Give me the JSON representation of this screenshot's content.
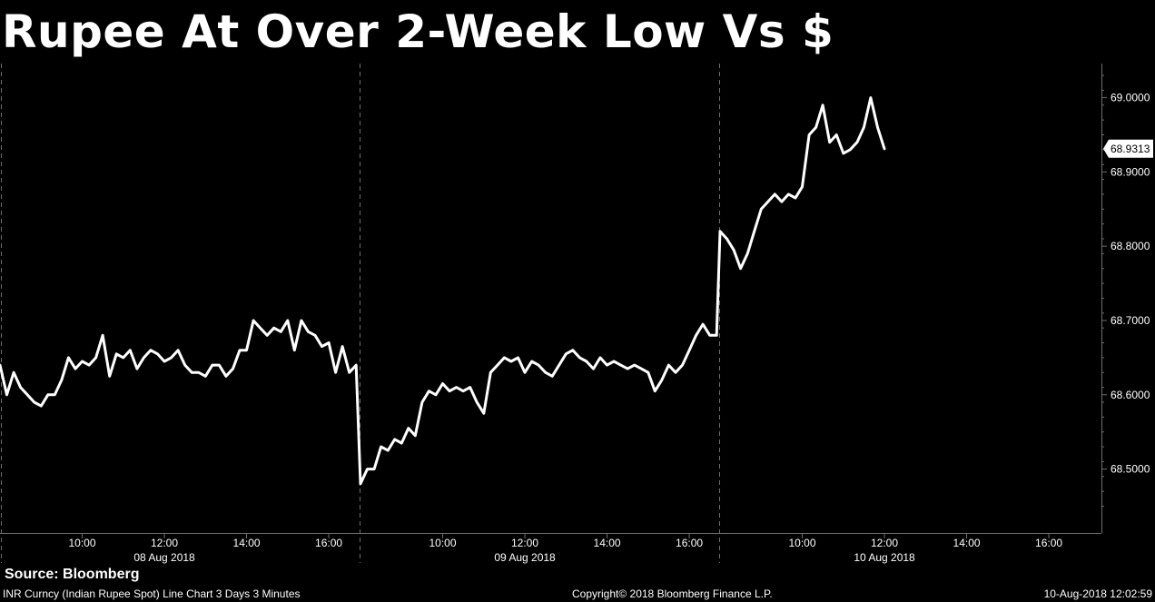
{
  "title": "Rupee At Over 2-Week Low Vs $",
  "source": "Source: Bloomberg",
  "footer": {
    "description": "INR Curncy (Indian Rupee Spot) Line Chart 3 Days 3 Minutes",
    "copyright": "Copyright© 2018 Bloomberg Finance L.P.",
    "timestamp": "10-Aug-2018 12:02:59"
  },
  "colors": {
    "background": "#000000",
    "line": "#ffffff",
    "grid": "#6e6e6e",
    "text": "#ffffff"
  },
  "chart_data": {
    "type": "line",
    "title": "Rupee At Over 2-Week Low Vs $",
    "xlabel": "",
    "ylabel": "",
    "ylim": [
      68.4,
      69.06
    ],
    "y_ticks": [
      68.5,
      68.6,
      68.7,
      68.8,
      68.9,
      69.0
    ],
    "y_tick_labels": [
      "68.5000",
      "68.6000",
      "68.7000",
      "68.8000",
      "68.9000",
      "69.0000"
    ],
    "last_value_label": "68.9313",
    "last_value": 68.9313,
    "grid": false,
    "sessions": [
      {
        "date": "08 Aug 2018",
        "start": "08:00",
        "end": "16:45",
        "tick_labels": [
          "10:00",
          "12:00",
          "14:00",
          "16:00"
        ]
      },
      {
        "date": "09 Aug 2018",
        "start": "08:00",
        "end": "16:45",
        "tick_labels": [
          "10:00",
          "12:00",
          "14:00",
          "16:00"
        ]
      },
      {
        "date": "10 Aug 2018",
        "start": "08:00",
        "end": "16:45",
        "tick_labels": [
          "10:00",
          "12:00",
          "14:00",
          "16:00"
        ]
      }
    ],
    "series": [
      {
        "points": [
          [
            "08 Aug 2018 08:00",
            68.64
          ],
          [
            "08 Aug 2018 08:10",
            68.6
          ],
          [
            "08 Aug 2018 08:20",
            68.63
          ],
          [
            "08 Aug 2018 08:30",
            68.61
          ],
          [
            "08 Aug 2018 08:40",
            68.6
          ],
          [
            "08 Aug 2018 08:50",
            68.59
          ],
          [
            "08 Aug 2018 09:00",
            68.585
          ],
          [
            "08 Aug 2018 09:10",
            68.6
          ],
          [
            "08 Aug 2018 09:20",
            68.6
          ],
          [
            "08 Aug 2018 09:30",
            68.62
          ],
          [
            "08 Aug 2018 09:40",
            68.65
          ],
          [
            "08 Aug 2018 09:50",
            68.635
          ],
          [
            "08 Aug 2018 10:00",
            68.645
          ],
          [
            "08 Aug 2018 10:10",
            68.64
          ],
          [
            "08 Aug 2018 10:20",
            68.65
          ],
          [
            "08 Aug 2018 10:30",
            68.68
          ],
          [
            "08 Aug 2018 10:40",
            68.625
          ],
          [
            "08 Aug 2018 10:50",
            68.655
          ],
          [
            "08 Aug 2018 11:00",
            68.65
          ],
          [
            "08 Aug 2018 11:10",
            68.66
          ],
          [
            "08 Aug 2018 11:20",
            68.635
          ],
          [
            "08 Aug 2018 11:30",
            68.65
          ],
          [
            "08 Aug 2018 11:40",
            68.66
          ],
          [
            "08 Aug 2018 11:50",
            68.655
          ],
          [
            "08 Aug 2018 12:00",
            68.645
          ],
          [
            "08 Aug 2018 12:10",
            68.65
          ],
          [
            "08 Aug 2018 12:20",
            68.66
          ],
          [
            "08 Aug 2018 12:30",
            68.64
          ],
          [
            "08 Aug 2018 12:40",
            68.63
          ],
          [
            "08 Aug 2018 12:50",
            68.63
          ],
          [
            "08 Aug 2018 13:00",
            68.625
          ],
          [
            "08 Aug 2018 13:10",
            68.64
          ],
          [
            "08 Aug 2018 13:20",
            68.64
          ],
          [
            "08 Aug 2018 13:30",
            68.625
          ],
          [
            "08 Aug 2018 13:40",
            68.635
          ],
          [
            "08 Aug 2018 13:50",
            68.66
          ],
          [
            "08 Aug 2018 14:00",
            68.66
          ],
          [
            "08 Aug 2018 14:10",
            68.7
          ],
          [
            "08 Aug 2018 14:20",
            68.69
          ],
          [
            "08 Aug 2018 14:30",
            68.68
          ],
          [
            "08 Aug 2018 14:40",
            68.69
          ],
          [
            "08 Aug 2018 14:50",
            68.685
          ],
          [
            "08 Aug 2018 15:00",
            68.7
          ],
          [
            "08 Aug 2018 15:10",
            68.66
          ],
          [
            "08 Aug 2018 15:20",
            68.7
          ],
          [
            "08 Aug 2018 15:30",
            68.685
          ],
          [
            "08 Aug 2018 15:40",
            68.68
          ],
          [
            "08 Aug 2018 15:50",
            68.665
          ],
          [
            "08 Aug 2018 16:00",
            68.67
          ],
          [
            "08 Aug 2018 16:10",
            68.63
          ],
          [
            "08 Aug 2018 16:20",
            68.665
          ],
          [
            "08 Aug 2018 16:30",
            68.63
          ],
          [
            "08 Aug 2018 16:40",
            68.64
          ],
          [
            "09 Aug 2018 08:00",
            68.48
          ],
          [
            "09 Aug 2018 08:10",
            68.5
          ],
          [
            "09 Aug 2018 08:20",
            68.5
          ],
          [
            "09 Aug 2018 08:30",
            68.53
          ],
          [
            "09 Aug 2018 08:40",
            68.525
          ],
          [
            "09 Aug 2018 08:50",
            68.54
          ],
          [
            "09 Aug 2018 09:00",
            68.535
          ],
          [
            "09 Aug 2018 09:10",
            68.555
          ],
          [
            "09 Aug 2018 09:20",
            68.545
          ],
          [
            "09 Aug 2018 09:30",
            68.59
          ],
          [
            "09 Aug 2018 09:40",
            68.605
          ],
          [
            "09 Aug 2018 09:50",
            68.6
          ],
          [
            "09 Aug 2018 10:00",
            68.615
          ],
          [
            "09 Aug 2018 10:10",
            68.605
          ],
          [
            "09 Aug 2018 10:20",
            68.61
          ],
          [
            "09 Aug 2018 10:30",
            68.605
          ],
          [
            "09 Aug 2018 10:40",
            68.61
          ],
          [
            "09 Aug 2018 10:50",
            68.59
          ],
          [
            "09 Aug 2018 11:00",
            68.575
          ],
          [
            "09 Aug 2018 11:10",
            68.63
          ],
          [
            "09 Aug 2018 11:20",
            68.64
          ],
          [
            "09 Aug 2018 11:30",
            68.65
          ],
          [
            "09 Aug 2018 11:40",
            68.645
          ],
          [
            "09 Aug 2018 11:50",
            68.65
          ],
          [
            "09 Aug 2018 12:00",
            68.63
          ],
          [
            "09 Aug 2018 12:10",
            68.645
          ],
          [
            "09 Aug 2018 12:20",
            68.64
          ],
          [
            "09 Aug 2018 12:30",
            68.63
          ],
          [
            "09 Aug 2018 12:40",
            68.625
          ],
          [
            "09 Aug 2018 12:50",
            68.64
          ],
          [
            "09 Aug 2018 13:00",
            68.655
          ],
          [
            "09 Aug 2018 13:10",
            68.66
          ],
          [
            "09 Aug 2018 13:20",
            68.65
          ],
          [
            "09 Aug 2018 13:30",
            68.645
          ],
          [
            "09 Aug 2018 13:40",
            68.635
          ],
          [
            "09 Aug 2018 13:50",
            68.65
          ],
          [
            "09 Aug 2018 14:00",
            68.64
          ],
          [
            "09 Aug 2018 14:10",
            68.645
          ],
          [
            "09 Aug 2018 14:20",
            68.64
          ],
          [
            "09 Aug 2018 14:30",
            68.635
          ],
          [
            "09 Aug 2018 14:40",
            68.64
          ],
          [
            "09 Aug 2018 14:50",
            68.635
          ],
          [
            "09 Aug 2018 15:00",
            68.63
          ],
          [
            "09 Aug 2018 15:10",
            68.605
          ],
          [
            "09 Aug 2018 15:20",
            68.62
          ],
          [
            "09 Aug 2018 15:30",
            68.64
          ],
          [
            "09 Aug 2018 15:40",
            68.63
          ],
          [
            "09 Aug 2018 15:50",
            68.64
          ],
          [
            "09 Aug 2018 16:00",
            68.66
          ],
          [
            "09 Aug 2018 16:10",
            68.68
          ],
          [
            "09 Aug 2018 16:20",
            68.695
          ],
          [
            "09 Aug 2018 16:30",
            68.68
          ],
          [
            "09 Aug 2018 16:40",
            68.68
          ],
          [
            "10 Aug 2018 08:00",
            68.82
          ],
          [
            "10 Aug 2018 08:10",
            68.81
          ],
          [
            "10 Aug 2018 08:20",
            68.795
          ],
          [
            "10 Aug 2018 08:30",
            68.77
          ],
          [
            "10 Aug 2018 08:40",
            68.79
          ],
          [
            "10 Aug 2018 08:50",
            68.82
          ],
          [
            "10 Aug 2018 09:00",
            68.85
          ],
          [
            "10 Aug 2018 09:10",
            68.86
          ],
          [
            "10 Aug 2018 09:20",
            68.87
          ],
          [
            "10 Aug 2018 09:30",
            68.86
          ],
          [
            "10 Aug 2018 09:40",
            68.87
          ],
          [
            "10 Aug 2018 09:50",
            68.865
          ],
          [
            "10 Aug 2018 10:00",
            68.88
          ],
          [
            "10 Aug 2018 10:10",
            68.95
          ],
          [
            "10 Aug 2018 10:20",
            68.96
          ],
          [
            "10 Aug 2018 10:30",
            68.99
          ],
          [
            "10 Aug 2018 10:40",
            68.94
          ],
          [
            "10 Aug 2018 10:50",
            68.95
          ],
          [
            "10 Aug 2018 11:00",
            68.925
          ],
          [
            "10 Aug 2018 11:10",
            68.93
          ],
          [
            "10 Aug 2018 11:20",
            68.94
          ],
          [
            "10 Aug 2018 11:30",
            68.96
          ],
          [
            "10 Aug 2018 11:40",
            69.0
          ],
          [
            "10 Aug 2018 11:50",
            68.96
          ],
          [
            "10 Aug 2018 12:00",
            68.9313
          ]
        ]
      }
    ]
  }
}
